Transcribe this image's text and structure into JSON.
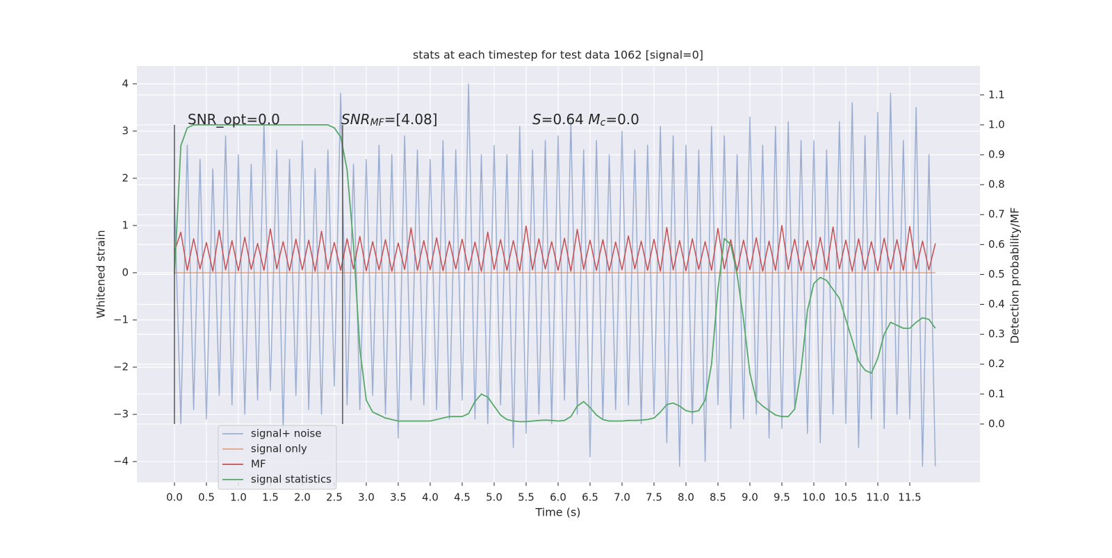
{
  "chart_data": {
    "type": "line",
    "title": "stats at each timestep for test data 1062 [signal=0]",
    "xlabel": "Time (s)",
    "ylabel": "Whitened strain",
    "y2label": "Detection probability/MF",
    "xlim": [
      -0.587,
      12.598
    ],
    "ylim": [
      -4.44,
      4.38
    ],
    "y2lim": [
      -0.195,
      1.197
    ],
    "xticks": [
      {
        "value": 0,
        "label": "0.0"
      },
      0.5,
      {
        "value": 1,
        "label": "1.0"
      },
      1.5,
      {
        "value": 2,
        "label": "2.0"
      },
      2.5,
      {
        "value": 3,
        "label": "3.0"
      },
      3.5,
      {
        "value": 4,
        "label": "4.0"
      },
      4.5,
      {
        "value": 5,
        "label": "5.0"
      },
      5.5,
      {
        "value": 6,
        "label": "6.0"
      },
      6.5,
      {
        "value": 7,
        "label": "7.0"
      },
      7.5,
      {
        "value": 8,
        "label": "8.0"
      },
      8.5,
      {
        "value": 9,
        "label": "9.0"
      },
      9.5,
      {
        "value": 10,
        "label": "10.0"
      },
      10.5,
      {
        "value": 11,
        "label": "11.0"
      },
      11.5
    ],
    "yticks": [
      {
        "value": -4,
        "label": "−4"
      },
      {
        "value": -3,
        "label": "−3"
      },
      {
        "value": -2,
        "label": "−2"
      },
      {
        "value": -1,
        "label": "−1"
      },
      0,
      1,
      2,
      3,
      4
    ],
    "y2ticks": [
      {
        "value": 0,
        "label": "0.0"
      },
      0.1,
      0.2,
      0.3,
      0.4,
      0.5,
      0.6,
      0.7,
      0.8,
      0.9,
      {
        "value": 1,
        "label": "1.0"
      },
      1.1
    ],
    "grid": true,
    "legend": "lower left",
    "vlines": [
      0,
      2.63
    ],
    "vline_color": "#555555",
    "annotations": [
      [
        {
          "text": "SNR_opt=0.0",
          "style": "normal"
        }
      ],
      [
        {
          "text": "SNR",
          "style": "italic"
        },
        {
          "text": "MF",
          "style": "italic-sub"
        },
        {
          "text": "=[4.08]",
          "style": "normal"
        }
      ],
      [
        {
          "text": "S",
          "style": "italic"
        },
        {
          "text": "=0.64   ",
          "style": "normal"
        },
        {
          "text": "M",
          "style": "italic"
        },
        {
          "text": "c",
          "style": "italic-sub"
        },
        {
          "text": "=0.0",
          "style": "normal"
        }
      ]
    ],
    "x": [
      0.0,
      0.1,
      0.2,
      0.3,
      0.4,
      0.5,
      0.6,
      0.7,
      0.8,
      0.9,
      1.0,
      1.1,
      1.2,
      1.3,
      1.4,
      1.5,
      1.6,
      1.7,
      1.8,
      1.9,
      2.0,
      2.1,
      2.2,
      2.3,
      2.4,
      2.5,
      2.6,
      2.7,
      2.8,
      2.9,
      3.0,
      3.1,
      3.2,
      3.3,
      3.4,
      3.5,
      3.6,
      3.7,
      3.8,
      3.9,
      4.0,
      4.1,
      4.2,
      4.3,
      4.4,
      4.5,
      4.6,
      4.7,
      4.8,
      4.9,
      5.0,
      5.1,
      5.2,
      5.3,
      5.4,
      5.5,
      5.6,
      5.7,
      5.8,
      5.9,
      6.0,
      6.1,
      6.2,
      6.3,
      6.4,
      6.5,
      6.6,
      6.7,
      6.8,
      6.9,
      7.0,
      7.1,
      7.2,
      7.3,
      7.4,
      7.5,
      7.6,
      7.7,
      7.8,
      7.9,
      8.0,
      8.1,
      8.2,
      8.3,
      8.4,
      8.5,
      8.6,
      8.7,
      8.8,
      8.9,
      9.0,
      9.1,
      9.2,
      9.3,
      9.4,
      9.5,
      9.6,
      9.7,
      9.8,
      9.9,
      10.0,
      10.1,
      10.2,
      10.3,
      10.4,
      10.5,
      10.6,
      10.7,
      10.8,
      10.9,
      11.0,
      11.1,
      11.2,
      11.3,
      11.4,
      11.5,
      11.6,
      11.7,
      11.8,
      11.9
    ],
    "series": [
      {
        "name": "signal+ noise",
        "color": "#4c72b0",
        "opacity": 0.5,
        "values": [
          1.6,
          -3.2,
          2.7,
          -2.9,
          2.4,
          -3.1,
          2.2,
          -2.6,
          2.9,
          -2.8,
          2.5,
          -3.0,
          2.3,
          -2.7,
          3.2,
          -2.5,
          2.6,
          -3.3,
          2.4,
          -2.6,
          2.8,
          -2.9,
          2.2,
          -3.0,
          2.6,
          -2.4,
          3.8,
          -2.8,
          2.3,
          -2.9,
          2.4,
          -2.6,
          2.7,
          -3.0,
          2.5,
          -3.5,
          2.9,
          -2.7,
          2.6,
          -2.8,
          2.4,
          -2.9,
          2.8,
          -3.1,
          2.6,
          -2.7,
          4.0,
          -3.1,
          2.5,
          -3.2,
          2.7,
          -2.8,
          2.5,
          -3.7,
          3.1,
          -3.4,
          2.6,
          -3.0,
          2.8,
          -3.2,
          2.9,
          -2.7,
          3.2,
          -3.0,
          2.6,
          -3.9,
          2.8,
          -3.1,
          2.5,
          -2.9,
          3.0,
          -2.8,
          2.6,
          -3.2,
          2.7,
          -3.0,
          3.1,
          -3.6,
          2.9,
          -4.1,
          2.7,
          -3.2,
          2.6,
          -4.0,
          3.1,
          -2.8,
          2.9,
          -3.3,
          2.5,
          -3.1,
          3.3,
          -3.0,
          2.7,
          -3.5,
          3.1,
          -3.3,
          3.2,
          -2.9,
          2.8,
          -3.4,
          2.8,
          -3.6,
          2.6,
          -3.0,
          3.2,
          -3.2,
          3.6,
          -3.7,
          2.9,
          -3.1,
          3.4,
          -3.3,
          3.8,
          -3.0,
          2.8,
          -3.1,
          3.5,
          -4.1,
          2.5,
          -4.1
        ]
      },
      {
        "name": "signal only",
        "color": "#dd8452",
        "opacity": 0.7,
        "values": [
          0,
          0,
          0,
          0,
          0,
          0,
          0,
          0,
          0,
          0,
          0,
          0,
          0,
          0,
          0,
          0,
          0,
          0,
          0,
          0,
          0,
          0,
          0,
          0,
          0,
          0,
          0,
          0,
          0,
          0,
          0,
          0,
          0,
          0,
          0,
          0,
          0,
          0,
          0,
          0,
          0,
          0,
          0,
          0,
          0,
          0,
          0,
          0,
          0,
          0,
          0,
          0,
          0,
          0,
          0,
          0,
          0,
          0,
          0,
          0,
          0,
          0,
          0,
          0,
          0,
          0,
          0,
          0,
          0,
          0,
          0,
          0,
          0,
          0,
          0,
          0,
          0,
          0,
          0,
          0,
          0,
          0,
          0,
          0,
          0,
          0,
          0,
          0,
          0,
          0,
          0,
          0,
          0,
          0,
          0,
          0,
          0,
          0,
          0,
          0,
          0,
          0,
          0,
          0,
          0,
          0,
          0,
          0,
          0,
          0,
          0,
          0,
          0,
          0,
          0,
          0,
          0,
          0,
          0,
          0
        ]
      },
      {
        "name": "MF",
        "color": "#c44e52",
        "opacity": 1,
        "values": [
          0.45,
          0.86,
          0.05,
          0.72,
          0.08,
          0.64,
          0.03,
          0.9,
          0.06,
          0.68,
          0.04,
          0.75,
          0.07,
          0.62,
          0.05,
          0.93,
          0.08,
          0.66,
          0.04,
          0.71,
          0.06,
          0.69,
          0.03,
          0.88,
          0.07,
          0.64,
          0.05,
          0.72,
          0.08,
          0.77,
          0.04,
          0.66,
          0.06,
          0.7,
          0.03,
          0.63,
          0.07,
          0.95,
          0.05,
          0.68,
          0.06,
          0.74,
          0.04,
          0.67,
          0.08,
          0.71,
          0.05,
          0.65,
          0.03,
          0.86,
          0.07,
          0.7,
          0.05,
          0.68,
          0.04,
          0.99,
          0.06,
          0.72,
          0.08,
          0.66,
          0.05,
          0.73,
          0.03,
          0.92,
          0.07,
          0.69,
          0.05,
          0.7,
          0.04,
          0.65,
          0.06,
          0.78,
          0.08,
          0.67,
          0.05,
          0.71,
          0.03,
          0.96,
          0.06,
          0.68,
          0.04,
          0.72,
          0.07,
          0.66,
          0.05,
          0.94,
          0.08,
          0.7,
          0.04,
          0.69,
          0.06,
          0.74,
          0.03,
          0.67,
          0.05,
          1.0,
          0.07,
          0.71,
          0.04,
          0.68,
          0.06,
          0.75,
          0.05,
          0.97,
          0.08,
          0.69,
          0.03,
          0.72,
          0.06,
          0.66,
          0.04,
          0.73,
          0.07,
          0.7,
          0.05,
          0.98,
          0.08,
          0.67,
          0.06,
          0.62
        ]
      },
      {
        "name": "signal statistics",
        "color": "#55a868",
        "opacity": 1,
        "axis": "y2",
        "values": [
          0.5,
          0.93,
          0.99,
          1.0,
          1.0,
          1.0,
          1.0,
          1.0,
          1.0,
          1.0,
          1.0,
          1.0,
          1.0,
          1.0,
          1.0,
          1.0,
          1.0,
          1.0,
          1.0,
          1.0,
          1.0,
          1.0,
          1.0,
          1.0,
          1.0,
          0.99,
          0.96,
          0.85,
          0.6,
          0.25,
          0.08,
          0.04,
          0.03,
          0.02,
          0.015,
          0.01,
          0.01,
          0.01,
          0.01,
          0.01,
          0.01,
          0.015,
          0.02,
          0.025,
          0.025,
          0.025,
          0.035,
          0.075,
          0.1,
          0.09,
          0.06,
          0.03,
          0.015,
          0.01,
          0.008,
          0.008,
          0.01,
          0.012,
          0.013,
          0.012,
          0.01,
          0.012,
          0.025,
          0.06,
          0.075,
          0.055,
          0.03,
          0.015,
          0.01,
          0.01,
          0.01,
          0.012,
          0.012,
          0.013,
          0.015,
          0.02,
          0.04,
          0.065,
          0.07,
          0.06,
          0.045,
          0.04,
          0.045,
          0.08,
          0.2,
          0.45,
          0.62,
          0.6,
          0.5,
          0.35,
          0.17,
          0.08,
          0.06,
          0.045,
          0.03,
          0.025,
          0.025,
          0.05,
          0.18,
          0.38,
          0.47,
          0.49,
          0.48,
          0.45,
          0.42,
          0.35,
          0.28,
          0.21,
          0.18,
          0.17,
          0.22,
          0.3,
          0.34,
          0.33,
          0.32,
          0.32,
          0.34,
          0.355,
          0.35,
          0.32
        ]
      }
    ]
  }
}
